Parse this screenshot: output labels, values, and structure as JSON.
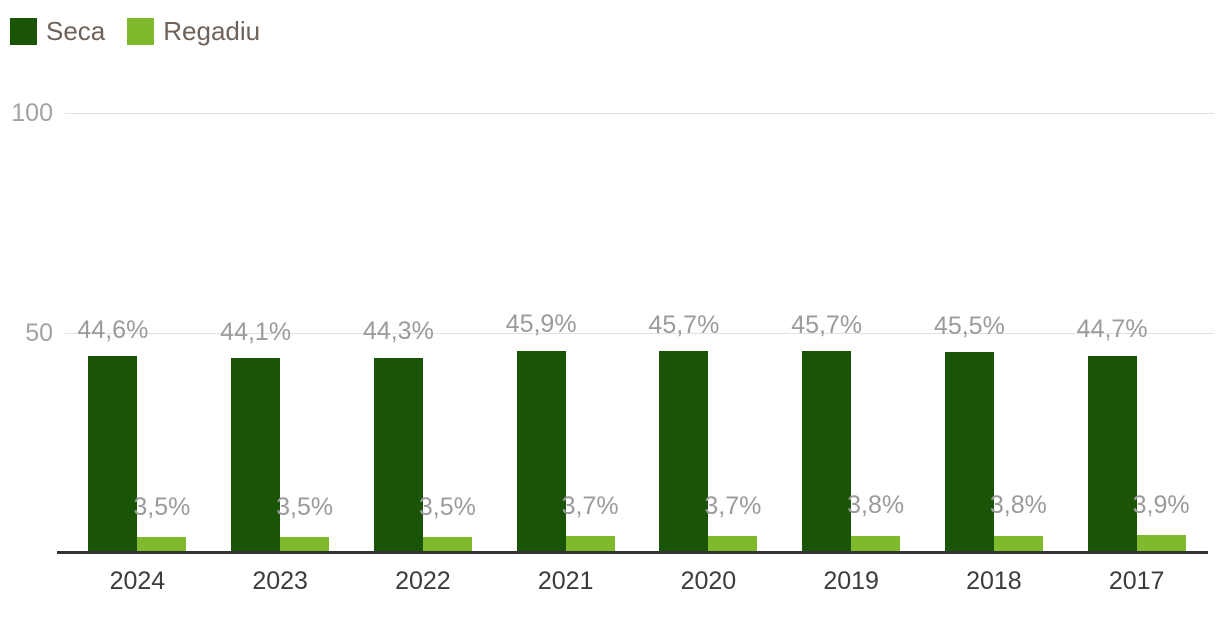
{
  "chart_data": {
    "type": "bar",
    "title": "",
    "xlabel": "",
    "ylabel": "",
    "categories": [
      "2024",
      "2023",
      "2022",
      "2021",
      "2020",
      "2019",
      "2018",
      "2017"
    ],
    "series": [
      {
        "name": "Seca",
        "color": "#1a5406",
        "values": [
          44.6,
          44.1,
          44.3,
          45.9,
          45.7,
          45.7,
          45.5,
          44.7
        ],
        "labels": [
          "44,6%",
          "44,1%",
          "44,3%",
          "45,9%",
          "45,7%",
          "45,7%",
          "45,5%",
          "44,7%"
        ]
      },
      {
        "name": "Regadiu",
        "color": "#7fba2d",
        "values": [
          3.5,
          3.5,
          3.5,
          3.7,
          3.7,
          3.8,
          3.8,
          3.9
        ],
        "labels": [
          "3,5%",
          "3,5%",
          "3,5%",
          "3,7%",
          "3,7%",
          "3,8%",
          "3,8%",
          "3,9%"
        ]
      }
    ],
    "yticks": [
      "50",
      "100"
    ],
    "ylim": [
      0,
      100
    ],
    "grid": "horizontal",
    "legend_position": "top-left"
  },
  "colors": {
    "grid": "#e2e2e2",
    "axis": "#333333",
    "value_label": "#9b9b9b",
    "ytick_label": "#a2a2a2",
    "category_label": "#3c3c3c",
    "legend_text": "#6e6259",
    "background": "#ffffff"
  }
}
